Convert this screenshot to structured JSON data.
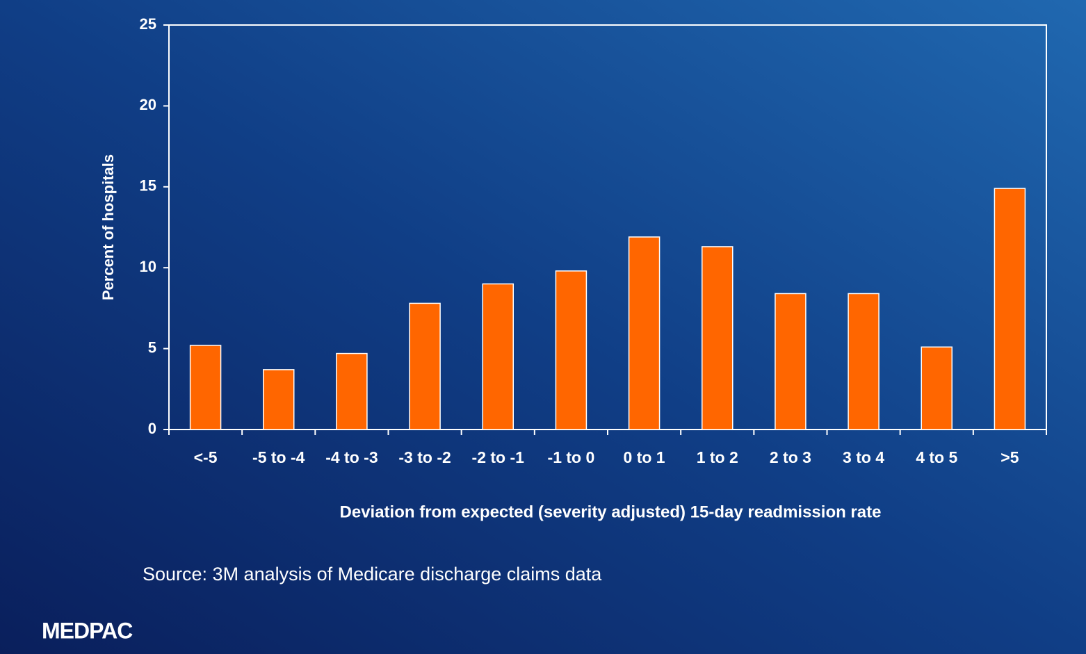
{
  "chart_data": {
    "type": "bar",
    "y_label": "Percent of hospitals",
    "x_label": "Deviation from expected (severity adjusted) 15-day readmission rate",
    "source": "Source: 3M analysis of Medicare discharge claims data",
    "logo": "MEDPAC",
    "categories": [
      "<-5",
      "-5 to -4",
      "-4 to -3",
      "-3 to -2",
      "-2 to -1",
      "-1 to 0",
      "0 to 1",
      "1 to 2",
      "2 to 3",
      "3 to 4",
      "4 to 5",
      ">5"
    ],
    "values": [
      5.2,
      3.7,
      4.7,
      7.8,
      9.0,
      9.8,
      11.9,
      11.3,
      8.4,
      8.4,
      5.1,
      14.9
    ],
    "color": "#ff6600",
    "ylim": [
      0,
      25
    ],
    "yticks": [
      0,
      5,
      10,
      15,
      20,
      25
    ]
  }
}
